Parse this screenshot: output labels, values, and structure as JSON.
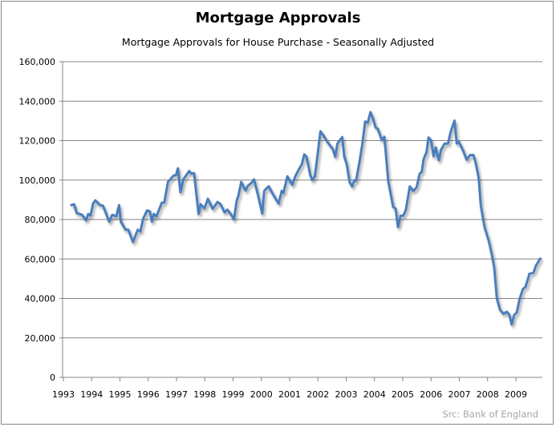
{
  "chart_data": {
    "type": "line",
    "title": "Mortgage Approvals",
    "subtitle": "Mortgage Approvals for House Purchase - Seasonally Adjusted",
    "source": "Src: Bank of England",
    "xlabel": "",
    "ylabel": "",
    "xlim": [
      1993,
      2010
    ],
    "ylim": [
      0,
      160000
    ],
    "grid": true,
    "legend": "none",
    "x_ticks": [
      "1993",
      "1994",
      "1995",
      "1996",
      "1997",
      "1998",
      "1999",
      "2000",
      "2001",
      "2002",
      "2003",
      "2004",
      "2005",
      "2006",
      "2007",
      "2008",
      "2009"
    ],
    "y_ticks": [
      "0",
      "20,000",
      "40,000",
      "60,000",
      "80,000",
      "100,000",
      "120,000",
      "140,000",
      "160,000"
    ],
    "series": [
      {
        "name": "Mortgage Approvals",
        "color": "#4a7ebb",
        "x": [
          1993.28,
          1993.38,
          1993.47,
          1993.66,
          1993.8,
          1993.88,
          1993.96,
          1994.05,
          1994.13,
          1994.3,
          1994.4,
          1994.62,
          1994.73,
          1994.87,
          1994.97,
          1995.03,
          1995.2,
          1995.3,
          1995.46,
          1995.63,
          1995.72,
          1995.82,
          1995.96,
          1996.06,
          1996.13,
          1996.2,
          1996.29,
          1996.48,
          1996.57,
          1996.7,
          1996.9,
          1996.98,
          1997.05,
          1997.14,
          1997.24,
          1997.45,
          1997.52,
          1997.62,
          1997.78,
          1997.85,
          1997.99,
          1998.11,
          1998.28,
          1998.45,
          1998.56,
          1998.7,
          1998.8,
          1998.94,
          1999.03,
          1999.13,
          1999.19,
          1999.29,
          1999.44,
          1999.53,
          1999.65,
          1999.74,
          1999.88,
          2000.03,
          2000.1,
          2000.26,
          2000.42,
          2000.61,
          2000.72,
          2000.78,
          2000.92,
          2001.09,
          2001.21,
          2001.35,
          2001.43,
          2001.52,
          2001.6,
          2001.73,
          2001.8,
          2001.89,
          2001.96,
          2002.09,
          2002.18,
          2002.37,
          2002.53,
          2002.61,
          2002.69,
          2002.86,
          2002.93,
          2003.02,
          2003.12,
          2003.21,
          2003.29,
          2003.35,
          2003.48,
          2003.57,
          2003.67,
          2003.76,
          2003.86,
          2003.95,
          2004.04,
          2004.12,
          2004.26,
          2004.35,
          2004.49,
          2004.66,
          2004.75,
          2004.83,
          2004.92,
          2005.02,
          2005.11,
          2005.25,
          2005.37,
          2005.49,
          2005.6,
          2005.67,
          2005.74,
          2005.84,
          2005.91,
          2006.0,
          2006.09,
          2006.17,
          2006.27,
          2006.36,
          2006.48,
          2006.6,
          2006.69,
          2006.83,
          2006.91,
          2006.99,
          2007.14,
          2007.26,
          2007.38,
          2007.5,
          2007.59,
          2007.69,
          2007.76,
          2007.89,
          2008.04,
          2008.14,
          2008.23,
          2008.33,
          2008.44,
          2008.56,
          2008.68,
          2008.77,
          2008.85,
          2008.94,
          2009.03,
          2009.13,
          2009.25,
          2009.34,
          2009.48,
          2009.62,
          2009.71,
          2009.86
        ],
        "y": [
          87300,
          87700,
          83200,
          82400,
          79600,
          82800,
          82000,
          88100,
          89700,
          87300,
          87000,
          78900,
          82400,
          81600,
          87300,
          78900,
          74800,
          74800,
          68600,
          74800,
          73900,
          80400,
          84600,
          84100,
          78900,
          82800,
          81600,
          88500,
          88700,
          99100,
          102300,
          102500,
          106000,
          93800,
          100300,
          104600,
          103300,
          103500,
          82800,
          87700,
          85700,
          90500,
          85400,
          88900,
          87700,
          83600,
          85000,
          82300,
          80000,
          89700,
          92200,
          99000,
          94700,
          97200,
          98500,
          100300,
          92500,
          83000,
          94500,
          96800,
          92500,
          88100,
          94500,
          93500,
          101900,
          97600,
          102200,
          106000,
          108000,
          113000,
          111700,
          102600,
          99900,
          101900,
          109400,
          124700,
          122900,
          118600,
          115700,
          111800,
          118500,
          121800,
          112100,
          108000,
          99000,
          96800,
          99900,
          99600,
          110000,
          118200,
          129700,
          129000,
          134400,
          131000,
          126600,
          125900,
          120200,
          121900,
          99200,
          86400,
          85400,
          76200,
          81900,
          81900,
          85000,
          96800,
          94500,
          96300,
          103300,
          104000,
          110700,
          114100,
          121600,
          120200,
          112100,
          116600,
          110000,
          115500,
          118500,
          118500,
          124300,
          130100,
          118500,
          119300,
          114800,
          110300,
          112700,
          112700,
          108000,
          100600,
          87000,
          76200,
          69200,
          62700,
          55900,
          39700,
          34200,
          32200,
          33200,
          31600,
          26800,
          31600,
          32900,
          39700,
          44800,
          45800,
          52500,
          52900,
          56600,
          60200
        ]
      }
    ]
  }
}
